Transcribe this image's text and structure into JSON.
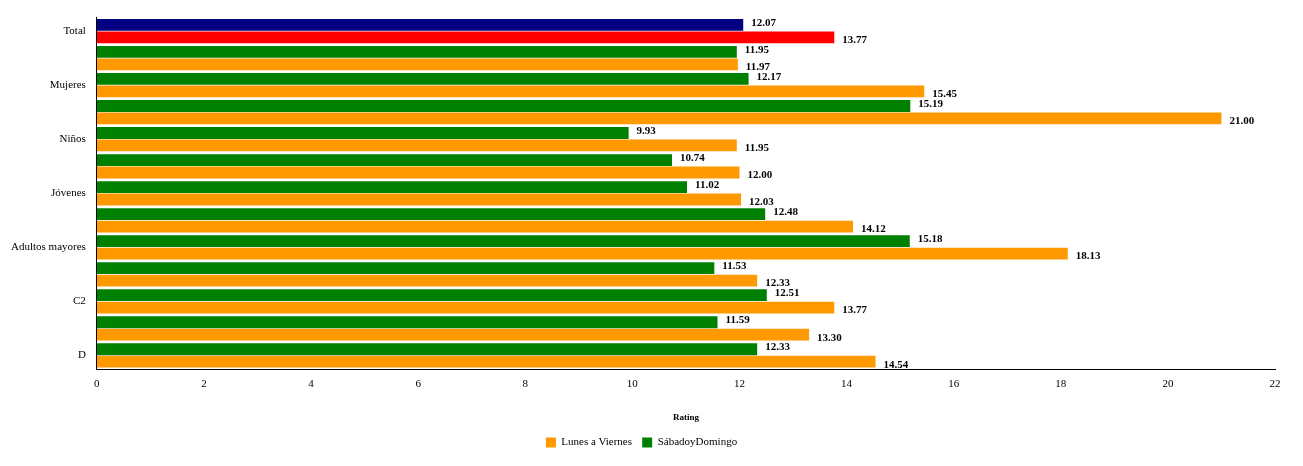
{
  "chart_data": {
    "type": "bar",
    "orientation": "horizontal",
    "xlabel": "Rating",
    "categories": [
      "Total",
      null,
      "Mujeres",
      null,
      "Niños",
      null,
      "Jóvenes",
      null,
      "Adultos mayores",
      null,
      "C2",
      null,
      "D"
    ],
    "series": [
      {
        "name": "SábadoyDomingo",
        "color": "#008000",
        "colors": [
          "#000080",
          "#008000",
          "#008000",
          "#008000",
          "#008000",
          "#008000",
          "#008000",
          "#008000",
          "#008000",
          "#008000",
          "#008000",
          "#008000",
          "#008000"
        ],
        "values": [
          12.07,
          11.95,
          12.17,
          15.19,
          9.93,
          10.74,
          11.02,
          12.48,
          15.18,
          11.53,
          12.51,
          11.59,
          12.33
        ],
        "value_labels": [
          "12.07",
          "11.95",
          "12.17",
          "15.19",
          "9.93",
          "10.74",
          "11.02",
          "12.48",
          "15.18",
          "11.53",
          "12.51",
          "11.59",
          "12.33"
        ]
      },
      {
        "name": "Lunes a Viernes",
        "color": "#ff9900",
        "colors": [
          "#ff0000",
          "#ff9900",
          "#ff9900",
          "#ff9900",
          "#ff9900",
          "#ff9900",
          "#ff9900",
          "#ff9900",
          "#ff9900",
          "#ff9900",
          "#ff9900",
          "#ff9900",
          "#ff9900"
        ],
        "values": [
          13.77,
          11.97,
          15.45,
          21.0,
          11.95,
          12.0,
          12.03,
          14.12,
          18.13,
          12.33,
          13.77,
          13.3,
          14.54
        ],
        "value_labels": [
          "13.77",
          "11.97",
          "15.45",
          "21.00",
          "11.95",
          "12.00",
          "12.03",
          "14.12",
          "18.13",
          "12.33",
          "13.77",
          "13.30",
          "14.54"
        ]
      }
    ],
    "xlim": [
      0,
      22
    ],
    "xticks": [
      0,
      2,
      4,
      6,
      8,
      10,
      12,
      14,
      16,
      18,
      20,
      22
    ],
    "grid": false,
    "legend": "bottom"
  }
}
